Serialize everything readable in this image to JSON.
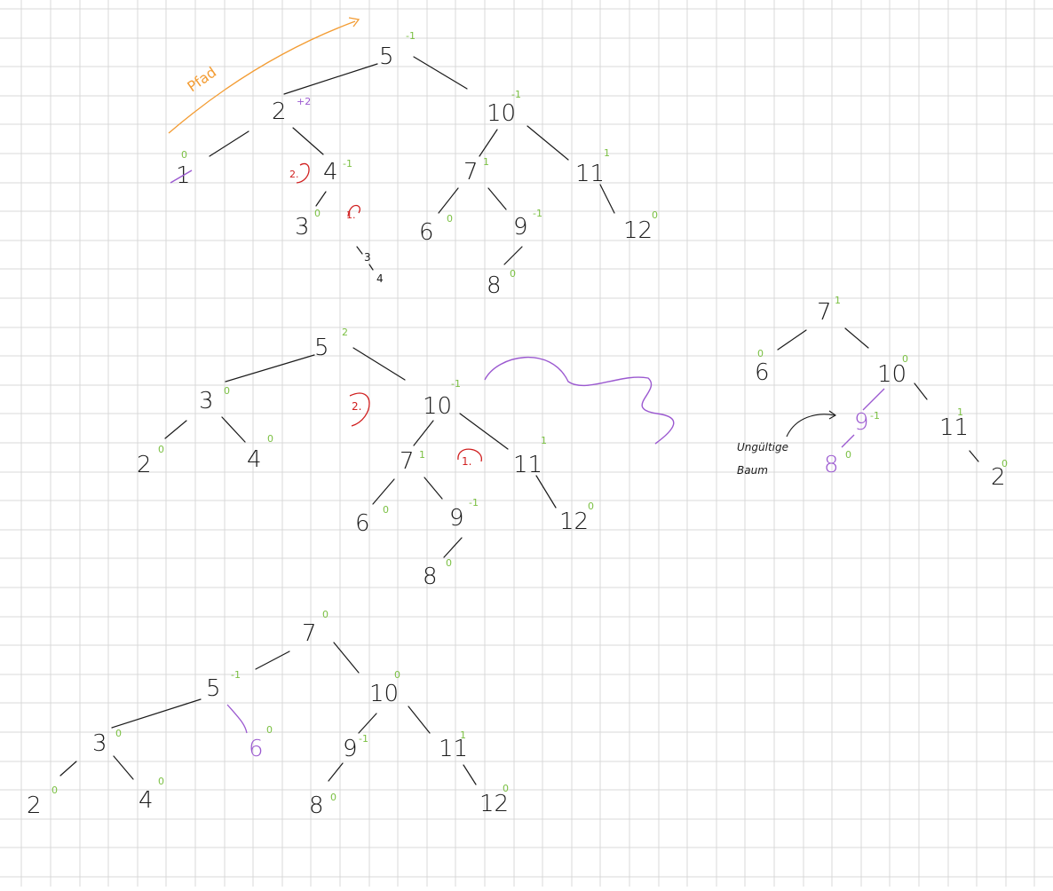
{
  "colors": {
    "grid": "#d9d9d9",
    "ink": "#1a1a1a",
    "balance": "#7bc043",
    "rotation_marker": "#d01f1f",
    "path_annotation": "#f39c33",
    "highlight": "#9b59d0"
  },
  "annotations": {
    "path_label": "Pfad",
    "unbalanced_label_line1": "Ungültige",
    "unbalanced_label_line2": "Baum",
    "rotation_step_1": "1.",
    "rotation_step_2": "2.",
    "note_top": "3",
    "note_bottom": "4"
  },
  "trees": [
    {
      "id": "tree1",
      "nodes": [
        {
          "value": "5",
          "balance": "-1"
        },
        {
          "value": "2",
          "balance": "+2"
        },
        {
          "value": "1",
          "balance": "0",
          "removed": true
        },
        {
          "value": "4",
          "balance": "-1"
        },
        {
          "value": "3",
          "balance": "0"
        },
        {
          "value": "10",
          "balance": "-1"
        },
        {
          "value": "7",
          "balance": "1"
        },
        {
          "value": "6",
          "balance": "0"
        },
        {
          "value": "9",
          "balance": "-1"
        },
        {
          "value": "8",
          "balance": "0"
        },
        {
          "value": "11",
          "balance": "1"
        },
        {
          "value": "12",
          "balance": "0"
        }
      ]
    },
    {
      "id": "tree2",
      "nodes": [
        {
          "value": "5",
          "balance": "2"
        },
        {
          "value": "3",
          "balance": "0"
        },
        {
          "value": "2",
          "balance": "0"
        },
        {
          "value": "4",
          "balance": "0"
        },
        {
          "value": "10",
          "balance": "-1"
        },
        {
          "value": "7",
          "balance": "1"
        },
        {
          "value": "6",
          "balance": "0"
        },
        {
          "value": "9",
          "balance": "-1"
        },
        {
          "value": "8",
          "balance": "0"
        },
        {
          "value": "11",
          "balance": "1"
        },
        {
          "value": "12",
          "balance": "0"
        }
      ]
    },
    {
      "id": "tree3",
      "nodes": [
        {
          "value": "7",
          "balance": "0"
        },
        {
          "value": "5",
          "balance": "-1"
        },
        {
          "value": "3",
          "balance": "0"
        },
        {
          "value": "2",
          "balance": "0"
        },
        {
          "value": "4",
          "balance": "0"
        },
        {
          "value": "6",
          "balance": "0"
        },
        {
          "value": "10",
          "balance": "0"
        },
        {
          "value": "9",
          "balance": "-1"
        },
        {
          "value": "8",
          "balance": "0"
        },
        {
          "value": "11",
          "balance": "1"
        },
        {
          "value": "12",
          "balance": "0"
        }
      ]
    },
    {
      "id": "tree4",
      "nodes": [
        {
          "value": "7",
          "balance": "1"
        },
        {
          "value": "6",
          "balance": "0"
        },
        {
          "value": "10",
          "balance": "0"
        },
        {
          "value": "9",
          "balance": "-1"
        },
        {
          "value": "8",
          "balance": "0"
        },
        {
          "value": "11",
          "balance": "1"
        },
        {
          "value": "2",
          "balance": "0"
        }
      ]
    }
  ]
}
